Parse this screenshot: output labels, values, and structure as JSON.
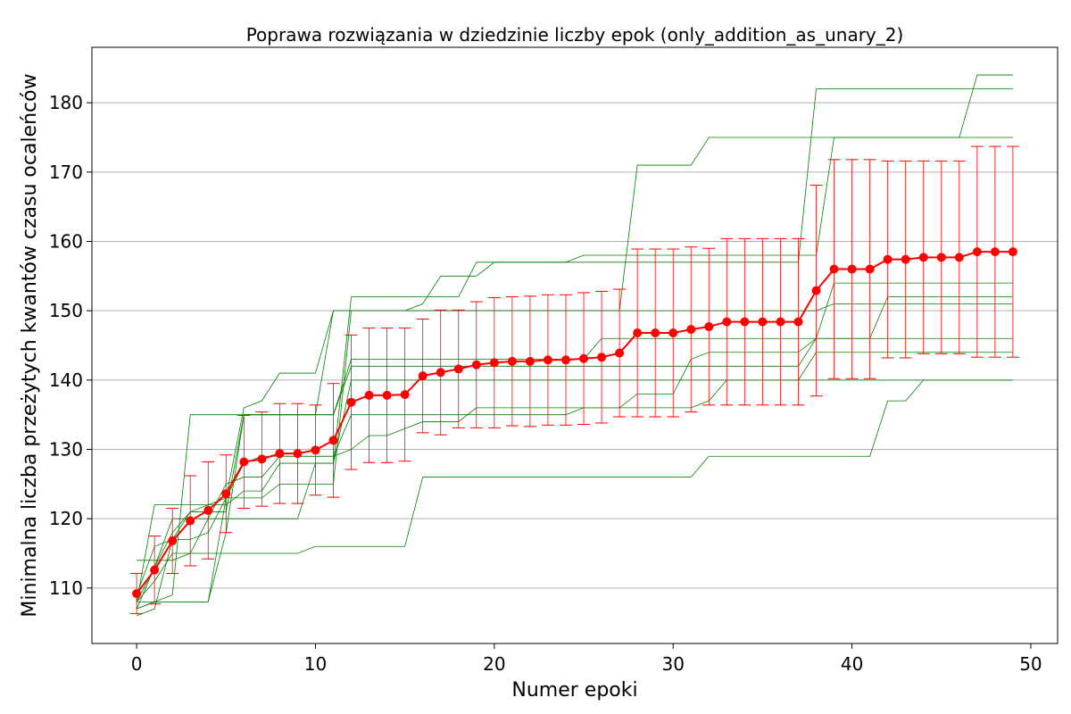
{
  "chart_data": {
    "type": "line",
    "title": "Poprawa rozwiązania w dziedzinie liczby epok (only_addition_as_unary_2)",
    "xlabel": "Numer epoki",
    "ylabel": "Minimalna liczba przeżytych kwantów czasu ocaleńców",
    "xlim": [
      -2.5,
      51.5
    ],
    "ylim": [
      102,
      188
    ],
    "xticks": [
      0,
      10,
      20,
      30,
      40,
      50
    ],
    "yticks": [
      110,
      120,
      130,
      140,
      150,
      160,
      170,
      180
    ],
    "grid": "horizontal",
    "legend": "none",
    "colors": {
      "mean": "#ff0000",
      "runs": "#008000",
      "grid": "#b0b0b0",
      "axis": "#000000"
    },
    "mean": {
      "x": [
        0,
        1,
        2,
        3,
        4,
        5,
        6,
        7,
        8,
        9,
        10,
        11,
        12,
        13,
        14,
        15,
        16,
        17,
        18,
        19,
        20,
        21,
        22,
        23,
        24,
        25,
        26,
        27,
        28,
        29,
        30,
        31,
        32,
        33,
        34,
        35,
        36,
        37,
        38,
        39,
        40,
        41,
        42,
        43,
        44,
        45,
        46,
        47,
        48,
        49
      ],
      "y": [
        109.2,
        112.6,
        116.8,
        119.7,
        121.2,
        123.6,
        128.2,
        128.6,
        129.4,
        129.4,
        129.9,
        131.3,
        136.8,
        137.8,
        137.8,
        137.9,
        140.6,
        141.1,
        141.6,
        142.2,
        142.5,
        142.7,
        142.7,
        142.9,
        142.9,
        143.1,
        143.3,
        143.9,
        146.8,
        146.8,
        146.8,
        147.3,
        147.7,
        148.4,
        148.4,
        148.4,
        148.4,
        148.4,
        152.9,
        156.0,
        156.0,
        156.0,
        157.4,
        157.4,
        157.7,
        157.7,
        157.7,
        158.5,
        158.5,
        158.5
      ],
      "err": [
        2.9,
        4.9,
        4.7,
        6.5,
        7.0,
        5.6,
        6.7,
        6.8,
        7.2,
        7.2,
        6.5,
        8.2,
        9.7,
        9.7,
        9.7,
        9.6,
        8.2,
        9.0,
        8.5,
        9.1,
        9.4,
        9.3,
        9.4,
        9.4,
        9.4,
        9.5,
        9.5,
        9.2,
        12.1,
        12.1,
        12.1,
        11.9,
        11.3,
        12.0,
        12.0,
        12.0,
        12.0,
        12.0,
        15.2,
        15.8,
        15.8,
        15.8,
        14.2,
        14.2,
        13.9,
        13.9,
        13.9,
        15.2,
        15.2,
        15.2
      ]
    },
    "runs": [
      [
        107,
        108,
        108,
        108,
        108,
        118,
        135,
        135,
        135,
        135,
        135,
        150,
        150,
        150,
        150,
        150,
        151,
        155,
        155,
        155,
        157,
        157,
        157,
        157,
        157,
        158,
        158,
        158,
        158,
        158,
        158,
        158,
        158,
        158,
        158,
        158,
        158,
        158,
        158,
        175,
        175,
        175,
        175,
        175,
        175,
        175,
        175,
        184,
        184,
        184
      ],
      [
        108,
        122,
        122,
        122,
        122,
        122,
        124,
        124,
        128,
        128,
        128,
        128,
        152,
        152,
        152,
        152,
        152,
        152,
        152,
        157,
        157,
        157,
        157,
        157,
        157,
        157,
        157,
        157,
        157,
        157,
        157,
        157,
        157,
        157,
        157,
        157,
        157,
        157,
        182,
        182,
        182,
        182,
        182,
        182,
        182,
        182,
        182,
        182,
        182,
        182
      ],
      [
        114,
        114,
        114,
        115,
        115,
        115,
        115,
        115,
        115,
        115,
        116,
        116,
        116,
        116,
        116,
        116,
        126,
        126,
        126,
        126,
        126,
        126,
        126,
        126,
        126,
        126,
        126,
        126,
        126,
        126,
        126,
        126,
        129,
        129,
        129,
        129,
        129,
        129,
        129,
        129,
        129,
        129,
        137,
        137,
        140,
        140,
        140,
        140,
        140,
        140
      ],
      [
        107,
        108,
        108,
        108,
        108,
        123,
        123,
        123,
        125,
        125,
        125,
        125,
        150,
        150,
        150,
        150,
        150,
        150,
        150,
        150,
        150,
        150,
        150,
        150,
        150,
        150,
        150,
        150,
        171,
        171,
        171,
        171,
        175,
        175,
        175,
        175,
        175,
        175,
        175,
        175,
        175,
        175,
        175,
        175,
        175,
        175,
        175,
        175,
        175,
        175
      ],
      [
        106,
        107,
        117,
        121,
        121,
        121,
        135,
        135,
        135,
        135,
        135,
        135,
        142,
        142,
        142,
        142,
        142,
        142,
        142,
        142,
        142,
        142,
        142,
        142,
        142,
        142,
        142,
        142,
        142,
        142,
        142,
        142,
        142,
        142,
        142,
        142,
        142,
        142,
        146,
        146,
        146,
        146,
        152,
        152,
        152,
        152,
        152,
        152,
        152,
        152
      ],
      [
        108,
        113,
        118,
        121,
        122,
        123,
        136,
        137,
        141,
        141,
        141,
        150,
        150,
        150,
        150,
        150,
        150,
        150,
        150,
        150,
        150,
        150,
        150,
        150,
        150,
        150,
        150,
        150,
        150,
        150,
        150,
        150,
        150,
        150,
        150,
        150,
        150,
        150,
        150,
        151,
        151,
        151,
        151,
        151,
        151,
        151,
        151,
        151,
        151,
        151
      ],
      [
        108,
        108,
        109,
        135,
        135,
        135,
        135,
        135,
        135,
        135,
        135,
        135,
        143,
        143,
        143,
        143,
        143,
        143,
        143,
        143,
        143,
        143,
        143,
        143,
        143,
        143,
        146,
        146,
        146,
        146,
        146,
        146,
        146,
        146,
        146,
        146,
        146,
        146,
        146,
        154,
        154,
        154,
        154,
        154,
        154,
        154,
        154,
        154,
        154,
        154
      ],
      [
        107,
        113,
        120,
        120,
        120,
        125,
        126,
        126,
        129,
        129,
        129,
        129,
        130,
        132,
        132,
        133,
        134,
        134,
        134,
        136,
        136,
        136,
        136,
        136,
        136,
        136,
        136,
        136,
        138,
        138,
        138,
        143,
        144,
        144,
        144,
        144,
        144,
        144,
        146,
        146,
        146,
        146,
        146,
        146,
        146,
        146,
        146,
        146,
        146,
        146
      ],
      [
        109,
        116,
        117,
        117,
        118,
        123,
        128,
        129,
        129,
        129,
        129,
        129,
        135,
        135,
        135,
        135,
        135,
        135,
        135,
        135,
        135,
        135,
        135,
        135,
        135,
        136,
        136,
        136,
        136,
        136,
        136,
        136,
        137,
        140,
        140,
        140,
        140,
        140,
        140,
        140,
        140,
        140,
        140,
        140,
        140,
        140,
        140,
        140,
        140,
        140
      ],
      [
        108,
        111,
        115,
        115,
        120,
        120,
        120,
        120,
        120,
        120,
        128,
        128,
        140,
        140,
        140,
        140,
        140,
        140,
        140,
        140,
        140,
        140,
        140,
        140,
        140,
        140,
        140,
        140,
        140,
        140,
        140,
        140,
        140,
        140,
        140,
        140,
        140,
        140,
        144,
        144,
        144,
        144,
        144,
        144,
        144,
        144,
        144,
        144,
        144,
        144
      ]
    ]
  }
}
